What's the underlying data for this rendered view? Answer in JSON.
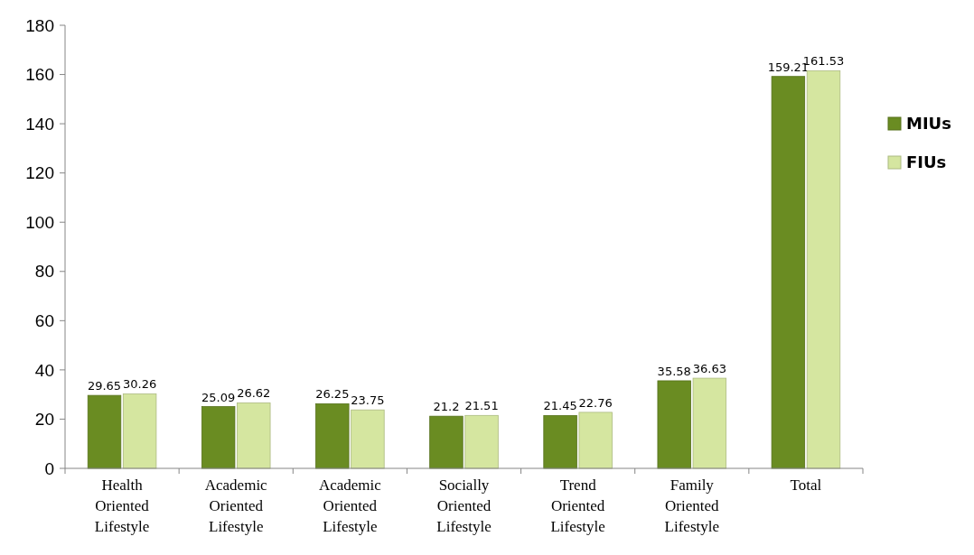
{
  "chart_data": {
    "type": "bar",
    "categories": [
      "Health Oriented Lifestyle",
      "Academic Oriented Lifestyle",
      "Academic Oriented Lifestyle",
      "Socially Oriented Lifestyle",
      "Trend Oriented Lifestyle",
      "Family Oriented Lifestyle",
      "Total"
    ],
    "series": [
      {
        "name": "MIUs",
        "color": "#6a8c22",
        "values": [
          29.65,
          25.09,
          26.25,
          21.2,
          21.45,
          35.58,
          159.21
        ]
      },
      {
        "name": "FIUs",
        "color": "#d5e6a0",
        "values": [
          30.26,
          26.62,
          23.75,
          21.51,
          22.76,
          36.63,
          161.53
        ]
      }
    ],
    "ylim": [
      0,
      180
    ],
    "yticks": [
      0,
      20,
      40,
      60,
      80,
      100,
      120,
      140,
      160,
      180
    ],
    "grid": false,
    "legend": "right",
    "data_labels": true
  }
}
